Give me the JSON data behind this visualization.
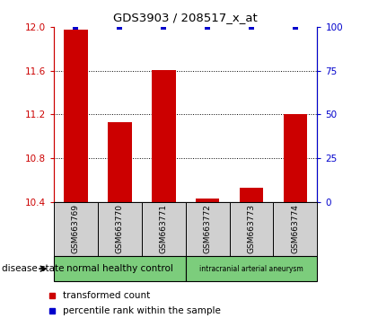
{
  "title": "GDS3903 / 208517_x_at",
  "samples": [
    "GSM663769",
    "GSM663770",
    "GSM663771",
    "GSM663772",
    "GSM663773",
    "GSM663774"
  ],
  "transformed_counts": [
    11.98,
    11.13,
    11.61,
    10.43,
    10.53,
    11.2
  ],
  "percentile_ranks": [
    100,
    100,
    100,
    100,
    100,
    100
  ],
  "ylim_left": [
    10.4,
    12.0
  ],
  "ylim_right": [
    0,
    100
  ],
  "yticks_left": [
    10.4,
    10.8,
    11.2,
    11.6,
    12.0
  ],
  "yticks_right": [
    0,
    25,
    50,
    75,
    100
  ],
  "bar_color": "#cc0000",
  "dot_color": "#0000cc",
  "group1_label": "normal healthy control",
  "group2_label": "intracranial arterial aneurysm",
  "group1_color": "#7ccd7c",
  "group2_color": "#7ccd7c",
  "disease_state_label": "disease state",
  "legend_red_label": "transformed count",
  "legend_blue_label": "percentile rank within the sample",
  "tick_label_color_left": "#cc0000",
  "tick_label_color_right": "#0000cc",
  "xlabel_gray_bg": "#d0d0d0",
  "base_value": 10.4,
  "bar_width": 0.55
}
